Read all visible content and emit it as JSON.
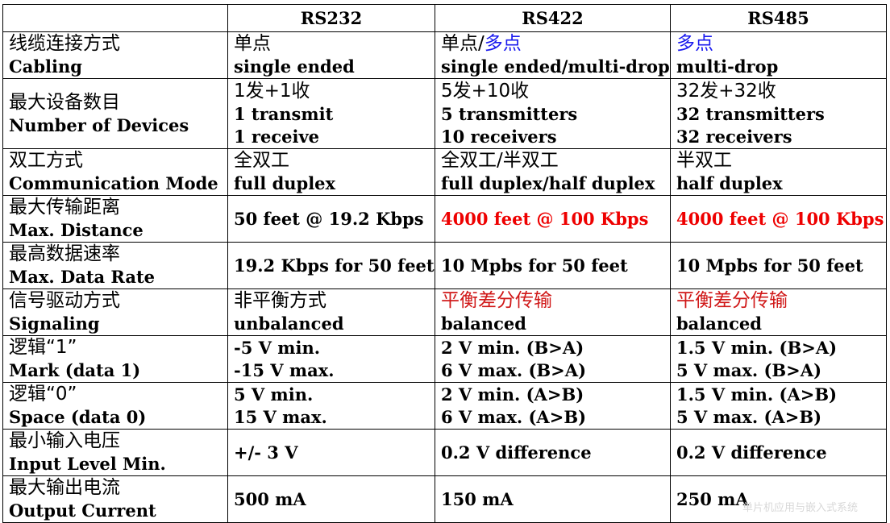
{
  "header": {
    "c0": "",
    "c1": "RS232",
    "c2": "RS422",
    "c3": "RS485"
  },
  "rows": [
    {
      "label_zh": "线缆连接方式",
      "label_en": "Cabling",
      "rs232": {
        "zh": "单点",
        "en": [
          "single ended"
        ]
      },
      "rs422": {
        "zh_a": "单点/",
        "zh_b": "多点",
        "en": [
          "single ended/multi-drop"
        ]
      },
      "rs485": {
        "zh": "多点",
        "en": [
          "multi-drop"
        ]
      }
    },
    {
      "label_zh": "最大设备数目",
      "label_en": "Number of Devices",
      "rs232": {
        "zh": "1发+1收",
        "en": [
          "1 transmit",
          "1 receive"
        ]
      },
      "rs422": {
        "zh": "5发+10收",
        "en": [
          "5 transmitters",
          "10 receivers"
        ]
      },
      "rs485": {
        "zh": "32发+32收",
        "en": [
          "32 transmitters",
          "32 receivers"
        ]
      }
    },
    {
      "label_zh": "双工方式",
      "label_en": "Communication Mode",
      "rs232": {
        "zh": "全双工",
        "en": [
          "full duplex"
        ]
      },
      "rs422": {
        "zh": "全双工/半双工",
        "en": [
          "full duplex/half duplex"
        ]
      },
      "rs485": {
        "zh": "半双工",
        "en": [
          "half duplex"
        ]
      }
    },
    {
      "label_zh": "最大传输距离",
      "label_en": "Max. Distance",
      "rs232": {
        "en": [
          "50 feet @ 19.2 Kbps"
        ]
      },
      "rs422": {
        "en": [
          "4000 feet @ 100 Kbps"
        ]
      },
      "rs485": {
        "en": [
          "4000 feet @ 100 Kbps"
        ]
      }
    },
    {
      "label_zh": "最高数据速率",
      "label_en": "Max. Data Rate",
      "rs232": {
        "en": [
          "19.2 Kbps for 50 feet"
        ]
      },
      "rs422": {
        "en": [
          "10 Mpbs for 50 feet"
        ]
      },
      "rs485": {
        "en": [
          "10 Mpbs for 50 feet"
        ]
      }
    },
    {
      "label_zh": "信号驱动方式",
      "label_en": "Signaling",
      "rs232": {
        "zh": "非平衡方式",
        "en": [
          "unbalanced"
        ]
      },
      "rs422": {
        "zh": "平衡差分传输",
        "en": [
          "balanced"
        ]
      },
      "rs485": {
        "zh": "平衡差分传输",
        "en": [
          "balanced"
        ]
      }
    },
    {
      "label_zh": "逻辑“1”",
      "label_en": "Mark (data 1)",
      "rs232": {
        "en": [
          "-5 V min.",
          "-15 V max."
        ]
      },
      "rs422": {
        "en": [
          "2 V min. (B>A)",
          "6 V max. (B>A)"
        ]
      },
      "rs485": {
        "en": [
          "1.5 V min. (B>A)",
          "5 V max. (B>A)"
        ]
      }
    },
    {
      "label_zh": "逻辑“0”",
      "label_en": "Space (data 0)",
      "rs232": {
        "en": [
          "5 V min.",
          "15 V max."
        ]
      },
      "rs422": {
        "en": [
          "2 V min. (A>B)",
          "6 V max. (A>B)"
        ]
      },
      "rs485": {
        "en": [
          "1.5 V min. (A>B)",
          "5 V max. (A>B)"
        ]
      }
    },
    {
      "label_zh": "最小输入电压",
      "label_en": "Input Level Min.",
      "rs232": {
        "en": [
          "+/- 3 V"
        ]
      },
      "rs422": {
        "en": [
          "0.2 V difference"
        ]
      },
      "rs485": {
        "en": [
          "0.2 V difference"
        ]
      }
    },
    {
      "label_zh": "最大输出电流",
      "label_en": "Output Current",
      "rs232": {
        "en": [
          "500 mA"
        ]
      },
      "rs422": {
        "en": [
          "150 mA"
        ]
      },
      "rs485": {
        "en": [
          "250 mA"
        ]
      }
    }
  ],
  "watermark": "单片机应用与嵌入式系统",
  "colors": {
    "highlight_red": "#ee0000",
    "highlight_blue": "#1a1aee",
    "zh_red": "#d01818"
  }
}
